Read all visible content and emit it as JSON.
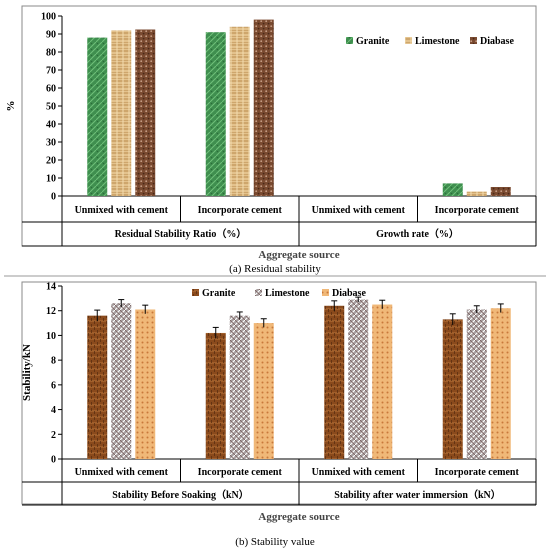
{
  "chart_data": [
    {
      "type": "bar",
      "panel_caption": "(a) Residual stability",
      "ylabel": "%",
      "xlabel": "Aggregate source",
      "ylim": [
        0,
        100
      ],
      "yticks": [
        0,
        10,
        20,
        30,
        40,
        50,
        60,
        70,
        80,
        90,
        100
      ],
      "legend_position": "right",
      "categories": [
        "Unmixed with cement",
        "Incorporate cement",
        "Unmixed with cement",
        "Incorporate cement"
      ],
      "groups": [
        "Residual Stability Ratio（%）",
        "Growth rate（%）"
      ],
      "series": [
        {
          "name": "Granite",
          "color": "#3f8f4f",
          "values": [
            88,
            91,
            0,
            7
          ]
        },
        {
          "name": "Limestone",
          "color": "#d9b27a",
          "values": [
            92,
            94,
            0,
            2.5
          ]
        },
        {
          "name": "Diabase",
          "color": "#7a4a30",
          "values": [
            92.5,
            98,
            0,
            5
          ]
        }
      ]
    },
    {
      "type": "bar",
      "panel_caption": "(b) Stability value",
      "ylabel": "Stability/kN",
      "xlabel": "Aggregate source",
      "ylim": [
        0,
        14
      ],
      "yticks": [
        0,
        2,
        4,
        6,
        8,
        10,
        12,
        14
      ],
      "legend_position": "top",
      "categories": [
        "Unmixed with cement",
        "Incorporate cement",
        "Unmixed with cement",
        "Incorporate cement"
      ],
      "groups": [
        "Stability Before Soaking（kN）",
        "Stability after water immersion（kN）"
      ],
      "series": [
        {
          "name": "Granite",
          "color": "#8a4a1c",
          "values": [
            11.6,
            10.2,
            12.4,
            11.3
          ],
          "errors": [
            0.45,
            0.45,
            0.4,
            0.45
          ]
        },
        {
          "name": "Limestone",
          "color": "#9a8a88",
          "values": [
            12.6,
            11.6,
            12.9,
            12.1
          ],
          "errors": [
            0.3,
            0.3,
            0.2,
            0.3
          ]
        },
        {
          "name": "Diabase",
          "color": "#e8a860",
          "values": [
            12.1,
            11.0,
            12.5,
            12.2
          ],
          "errors": [
            0.35,
            0.35,
            0.35,
            0.35
          ]
        }
      ]
    }
  ]
}
